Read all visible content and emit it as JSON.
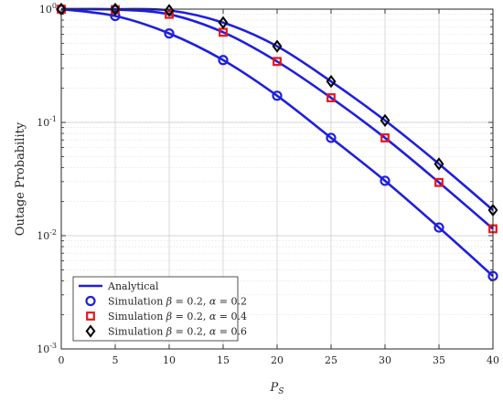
{
  "chart_data": {
    "type": "line",
    "title": "",
    "xlabel": "P_S",
    "ylabel": "Outage Probability",
    "xlim": [
      0,
      40
    ],
    "ylim": [
      0.001,
      1
    ],
    "yscale": "log",
    "grid": true,
    "minor_grid": true,
    "legend_position": "bottom-left",
    "x_ticks": [
      0,
      5,
      10,
      15,
      20,
      25,
      30,
      35,
      40
    ],
    "y_tick_labels": [
      {
        "value": 1,
        "base": "10",
        "exp": "0"
      },
      {
        "value": 0.1,
        "base": "10",
        "exp": "-1"
      },
      {
        "value": 0.01,
        "base": "10",
        "exp": "-2"
      },
      {
        "value": 0.001,
        "base": "10",
        "exp": "-3"
      }
    ],
    "x": [
      0,
      5,
      10,
      15,
      20,
      25,
      30,
      35,
      40
    ],
    "analytical": {
      "name": "Analytical",
      "color": "#1f1fdd",
      "curves": [
        [
          0.999,
          0.87,
          0.61,
          0.355,
          0.172,
          0.073,
          0.0305,
          0.0118,
          0.0044
        ],
        [
          0.999,
          0.99,
          0.9,
          0.625,
          0.345,
          0.165,
          0.073,
          0.0295,
          0.0115
        ],
        [
          0.999,
          0.999,
          0.975,
          0.76,
          0.47,
          0.23,
          0.104,
          0.043,
          0.0168
        ]
      ]
    },
    "series": [
      {
        "name": "Simulation",
        "beta": "0.2",
        "alpha": "0.2",
        "marker": "circle",
        "color": "#1f1fdd",
        "values": [
          0.999,
          0.87,
          0.61,
          0.355,
          0.172,
          0.073,
          0.0305,
          0.0118,
          0.0044
        ]
      },
      {
        "name": "Simulation",
        "beta": "0.2",
        "alpha": "0.4",
        "marker": "square",
        "color": "#e8161b",
        "values": [
          0.999,
          0.99,
          0.9,
          0.625,
          0.345,
          0.165,
          0.073,
          0.0295,
          0.0115
        ]
      },
      {
        "name": "Simulation",
        "beta": "0.2",
        "alpha": "0.6",
        "marker": "diamond",
        "color": "#000000",
        "values": [
          0.999,
          0.999,
          0.975,
          0.76,
          0.47,
          0.23,
          0.104,
          0.043,
          0.0168
        ]
      }
    ]
  }
}
